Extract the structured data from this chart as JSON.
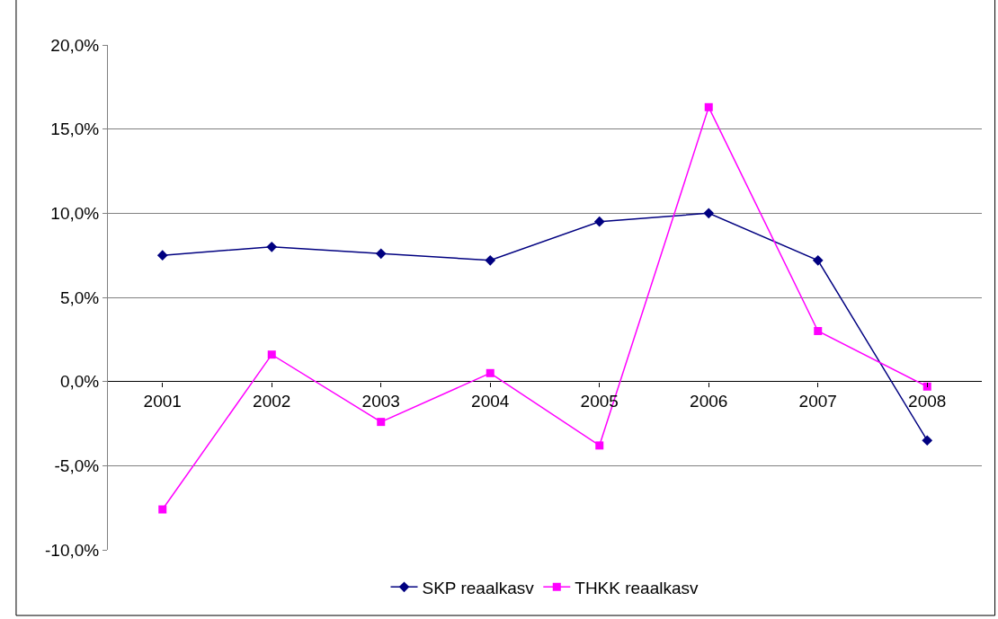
{
  "chart_data": {
    "type": "line",
    "categories": [
      "2001",
      "2002",
      "2003",
      "2004",
      "2005",
      "2006",
      "2007",
      "2008"
    ],
    "series": [
      {
        "name": "SKP reaalkasv",
        "color": "#000080",
        "marker": "diamond",
        "values": [
          7.5,
          8.0,
          7.6,
          7.2,
          9.5,
          10.0,
          7.2,
          -3.5
        ]
      },
      {
        "name": "THKK reaalkasv",
        "color": "#ff00ff",
        "marker": "square",
        "values": [
          -7.6,
          1.6,
          -2.4,
          0.5,
          -3.8,
          16.3,
          3.0,
          -0.3
        ]
      }
    ],
    "ylim": [
      -10,
      20
    ],
    "yticks": [
      {
        "value": -10,
        "label": "-10,0%"
      },
      {
        "value": -5,
        "label": "-5,0%"
      },
      {
        "value": 0,
        "label": "0,0%"
      },
      {
        "value": 5,
        "label": "5,0%"
      },
      {
        "value": 10,
        "label": "10,0%"
      },
      {
        "value": 15,
        "label": "15,0%"
      },
      {
        "value": 20,
        "label": "20,0%"
      }
    ],
    "grid": "y",
    "legend": "bottom",
    "line_style": "solid"
  }
}
